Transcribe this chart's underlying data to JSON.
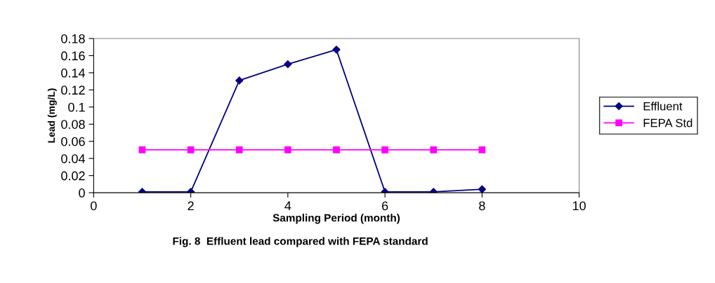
{
  "chart_data": {
    "type": "line",
    "title": "Fig. 8  Effluent lead compared with FEPA standard",
    "xlabel": "Sampling Period (month)",
    "ylabel": "Lead (mg/L)",
    "x": [
      1,
      2,
      3,
      4,
      5,
      6,
      7,
      8
    ],
    "series": [
      {
        "name": "Effluent",
        "color": "#000080",
        "marker": "diamond",
        "values": [
          0.001,
          0.001,
          0.131,
          0.15,
          0.167,
          0.001,
          0.001,
          0.004
        ]
      },
      {
        "name": "FEPA Std",
        "color": "#ff00ff",
        "marker": "square",
        "values": [
          0.05,
          0.05,
          0.05,
          0.05,
          0.05,
          0.05,
          0.05,
          0.05
        ]
      }
    ],
    "xlim": [
      0,
      10
    ],
    "xticks": [
      0,
      2,
      4,
      6,
      8,
      10
    ],
    "ylim": [
      0,
      0.18
    ],
    "yticks": [
      0,
      0.02,
      0.04,
      0.06,
      0.08,
      {
        "value": 0.1,
        "label": "0.1"
      },
      0.12,
      0.14,
      0.16,
      0.18
    ],
    "grid": false,
    "legend": "right",
    "line_style": "solid"
  }
}
